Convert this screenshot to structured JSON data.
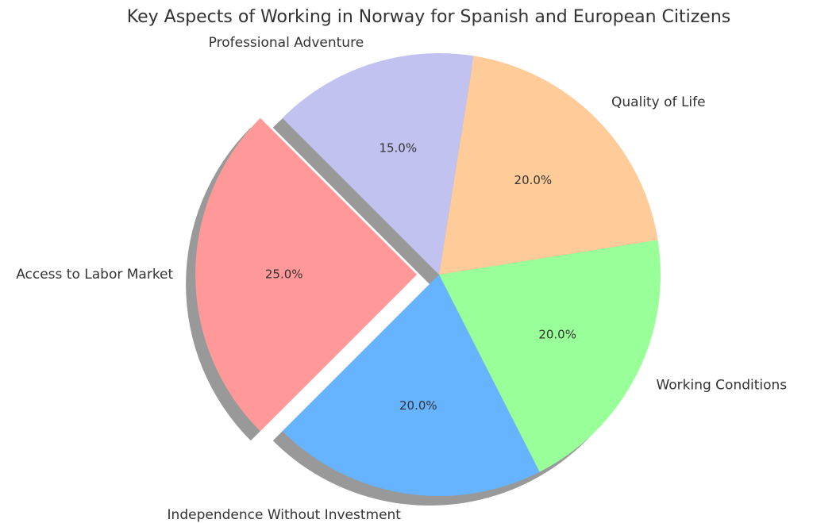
{
  "chart_data": {
    "type": "pie",
    "title": "Key Aspects of Working in Norway for Spanish and European Citizens",
    "categories": [
      "Access to Labor Market",
      "Independence Without Investment",
      "Working Conditions",
      "Quality of Life",
      "Professional Adventure"
    ],
    "values": [
      25,
      20,
      20,
      20,
      15
    ],
    "value_labels": [
      "25.0%",
      "20.0%",
      "20.0%",
      "20.0%",
      "15.0%"
    ],
    "colors": [
      "#ff9999",
      "#66b3ff",
      "#99ff99",
      "#ffcc99",
      "#c2c2f0"
    ]
  }
}
